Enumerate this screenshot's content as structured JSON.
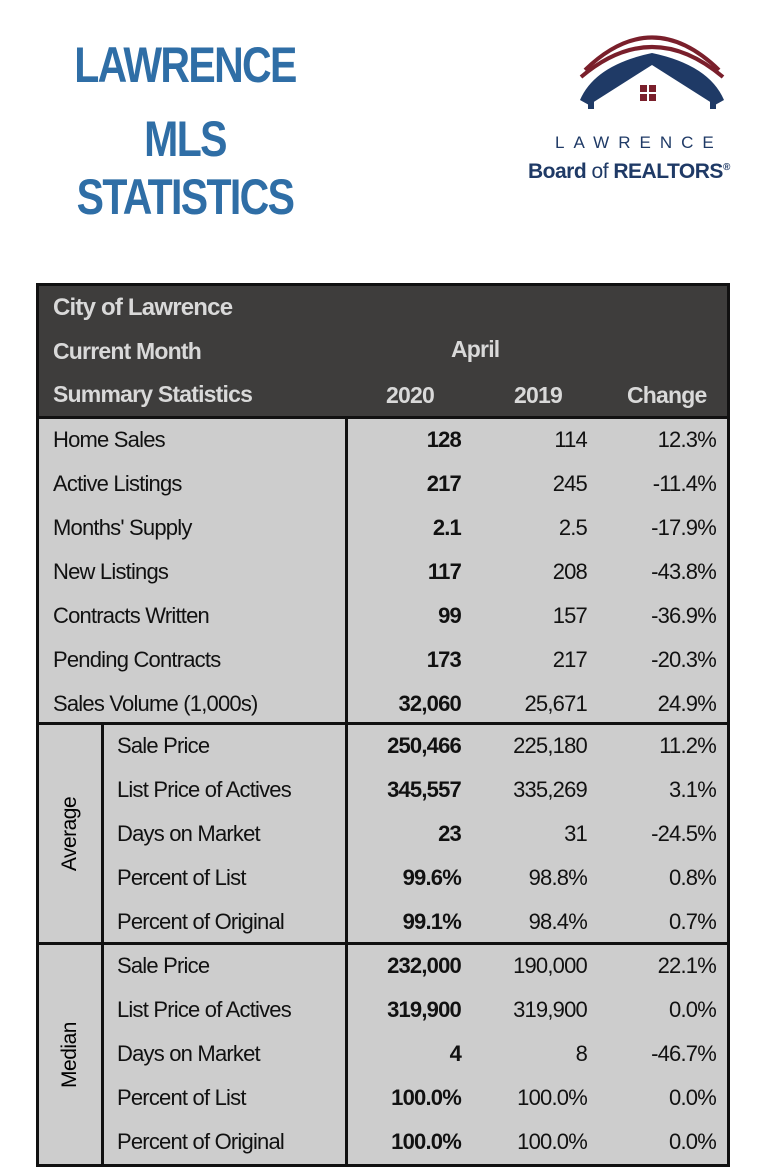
{
  "header": {
    "title_line1": "LAWRENCE",
    "title_line2": "MLS STATISTICS",
    "logo": {
      "line1": "LAWRENCE",
      "line2_bold1": "Board",
      "line2_of": " of ",
      "line2_bold2": "REALTORS",
      "reg": "®",
      "colors": {
        "navy": "#1f3a66",
        "maroon": "#7a1f2b"
      }
    }
  },
  "table": {
    "city": "City of Lawrence",
    "period_label": "Current Month",
    "month": "April",
    "section_label": "Summary Statistics",
    "col_2020": "2020",
    "col_2019": "2019",
    "col_change": "Change",
    "summary": [
      {
        "label": "Home Sales",
        "v2020": "128",
        "v2019": "114",
        "change": "12.3%"
      },
      {
        "label": "Active Listings",
        "v2020": "217",
        "v2019": "245",
        "change": "-11.4%"
      },
      {
        "label": "Months' Supply",
        "v2020": "2.1",
        "v2019": "2.5",
        "change": "-17.9%"
      },
      {
        "label": "New Listings",
        "v2020": "117",
        "v2019": "208",
        "change": "-43.8%"
      },
      {
        "label": "Contracts Written",
        "v2020": "99",
        "v2019": "157",
        "change": "-36.9%"
      },
      {
        "label": "Pending Contracts",
        "v2020": "173",
        "v2019": "217",
        "change": "-20.3%"
      },
      {
        "label": "Sales Volume (1,000s)",
        "v2020": "32,060",
        "v2019": "25,671",
        "change": "24.9%"
      }
    ],
    "average_label": "Average",
    "average": [
      {
        "label": "Sale Price",
        "v2020": "250,466",
        "v2019": "225,180",
        "change": "11.2%"
      },
      {
        "label": "List Price of Actives",
        "v2020": "345,557",
        "v2019": "335,269",
        "change": "3.1%"
      },
      {
        "label": "Days on Market",
        "v2020": "23",
        "v2019": "31",
        "change": "-24.5%"
      },
      {
        "label": "Percent of List",
        "v2020": "99.6%",
        "v2019": "98.8%",
        "change": "0.8%"
      },
      {
        "label": "Percent of Original",
        "v2020": "99.1%",
        "v2019": "98.4%",
        "change": "0.7%"
      }
    ],
    "median_label": "Median",
    "median": [
      {
        "label": "Sale Price",
        "v2020": "232,000",
        "v2019": "190,000",
        "change": "22.1%"
      },
      {
        "label": "List Price of Actives",
        "v2020": "319,900",
        "v2019": "319,900",
        "change": "0.0%"
      },
      {
        "label": "Days on Market",
        "v2020": "4",
        "v2019": "8",
        "change": "-46.7%"
      },
      {
        "label": "Percent of List",
        "v2020": "100.0%",
        "v2019": "100.0%",
        "change": "0.0%"
      },
      {
        "label": "Percent of Original",
        "v2020": "100.0%",
        "v2019": "100.0%",
        "change": "0.0%"
      }
    ]
  }
}
